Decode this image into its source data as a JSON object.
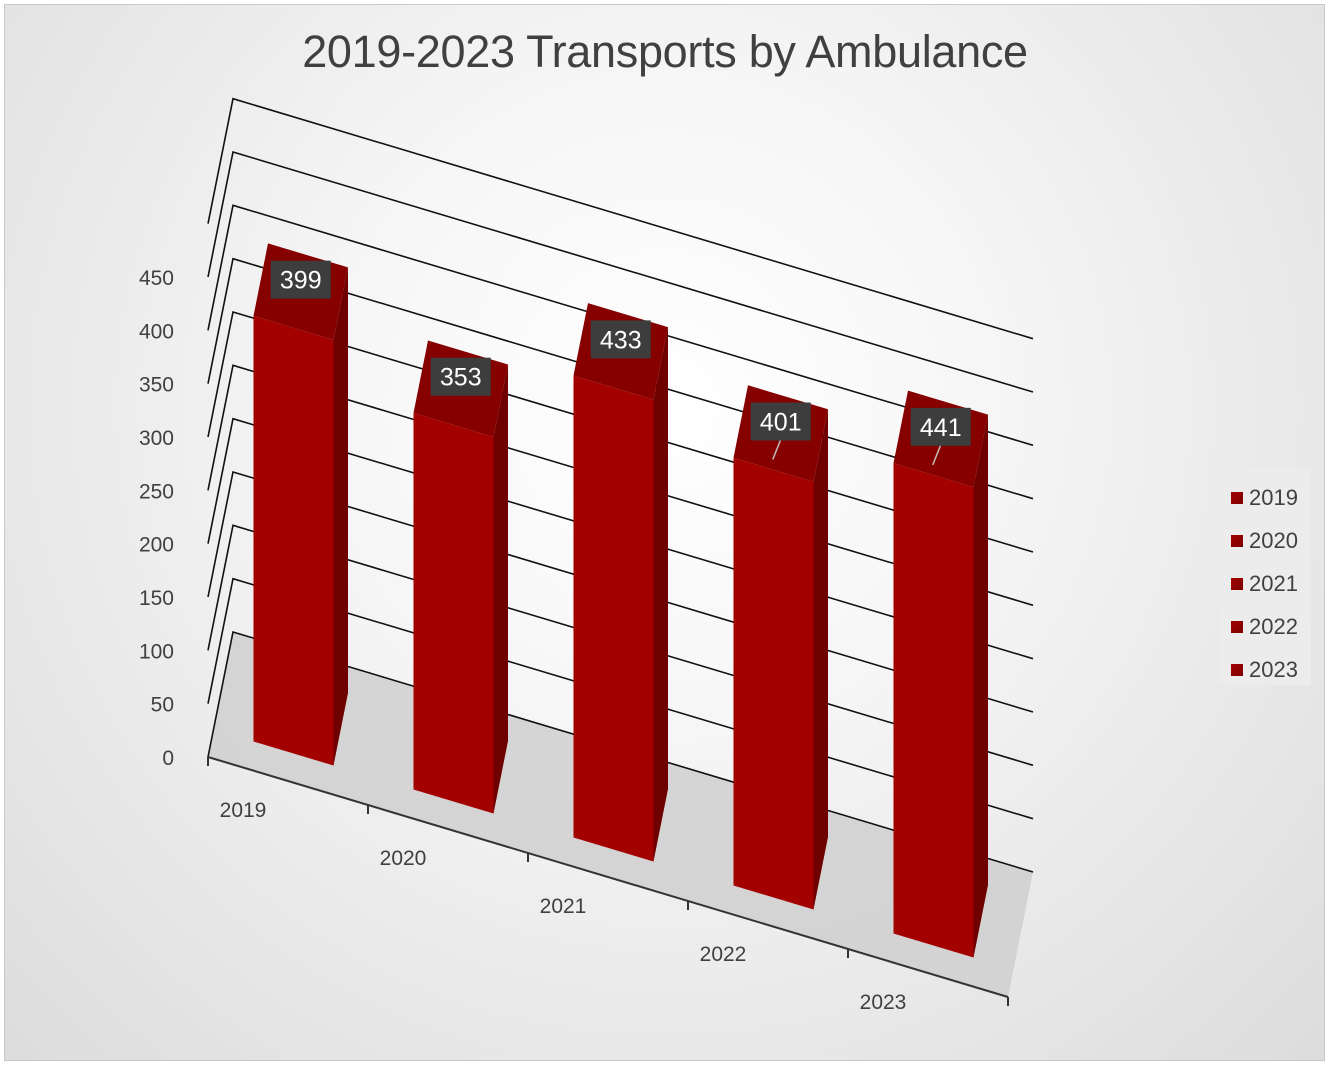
{
  "chart_data": {
    "type": "bar",
    "title": "2019-2023 Transports by Ambulance",
    "categories": [
      "2019",
      "2020",
      "2021",
      "2022",
      "2023"
    ],
    "series": [
      {
        "name": "2019",
        "values": [
          399,
          null,
          null,
          null,
          null
        ]
      },
      {
        "name": "2020",
        "values": [
          null,
          353,
          null,
          null,
          null
        ]
      },
      {
        "name": "2021",
        "values": [
          null,
          null,
          433,
          null,
          null
        ]
      },
      {
        "name": "2022",
        "values": [
          null,
          null,
          null,
          401,
          null
        ]
      },
      {
        "name": "2023",
        "values": [
          null,
          null,
          null,
          null,
          441
        ]
      }
    ],
    "values": [
      399,
      353,
      433,
      401,
      441
    ],
    "data_labels": [
      "399",
      "353",
      "433",
      "401",
      "441"
    ],
    "y_ticks": [
      "0",
      "50",
      "100",
      "150",
      "200",
      "250",
      "300",
      "350",
      "400",
      "450"
    ],
    "ylim": [
      0,
      450
    ],
    "xlabel": "",
    "ylabel": "",
    "grid": true,
    "legend_position": "right",
    "style": "3d-column",
    "colors": {
      "bar_front": "#a30000",
      "bar_side": "#6e0000",
      "bar_top": "#870000",
      "label_bg": "#3d3d3d",
      "label_text": "#ffffff"
    }
  },
  "legend": {
    "items": [
      {
        "label": "2019"
      },
      {
        "label": "2020"
      },
      {
        "label": "2021"
      },
      {
        "label": "2022"
      },
      {
        "label": "2023"
      }
    ]
  }
}
